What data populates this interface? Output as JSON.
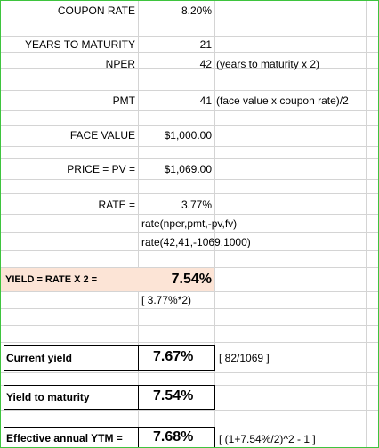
{
  "sheet": {
    "coupon_rate_label": "COUPON RATE",
    "coupon_rate_value": "8.20%",
    "ytm_years_label": "YEARS TO MATURITY",
    "ytm_years_value": "21",
    "nper_label": "NPER",
    "nper_value": "42",
    "nper_note": "(years to maturity x 2)",
    "pmt_label": "PMT",
    "pmt_value": "41",
    "pmt_note": "(face value x coupon rate)/2",
    "face_label": "FACE VALUE",
    "face_value": "$1,000.00",
    "price_label": "PRICE = PV =",
    "price_value": "$1,069.00",
    "rate_label": "RATE =",
    "rate_value": "3.77%",
    "rate_formula": "rate(nper,pmt,-pv,fv)",
    "rate_formula_values": "rate(42,41,-1069,1000)",
    "yield_label": "YIELD = RATE X 2 =",
    "yield_value": "7.54%",
    "yield_note": "[ 3.77%*2)",
    "current_yield_label": "Current yield",
    "current_yield_value": "7.67%",
    "current_yield_note": "[ 82/1069 ]",
    "ytm_label": "Yield to maturity",
    "ytm_value": "7.54%",
    "eay_label": "Effective annual YTM =",
    "eay_value": "7.68%",
    "eay_note": "[ (1+7.54%/2)^2 - 1 ]"
  },
  "colors": {
    "highlight": "#fce4d6",
    "frame": "#3ec43e",
    "grid": "#d4d4d4"
  }
}
